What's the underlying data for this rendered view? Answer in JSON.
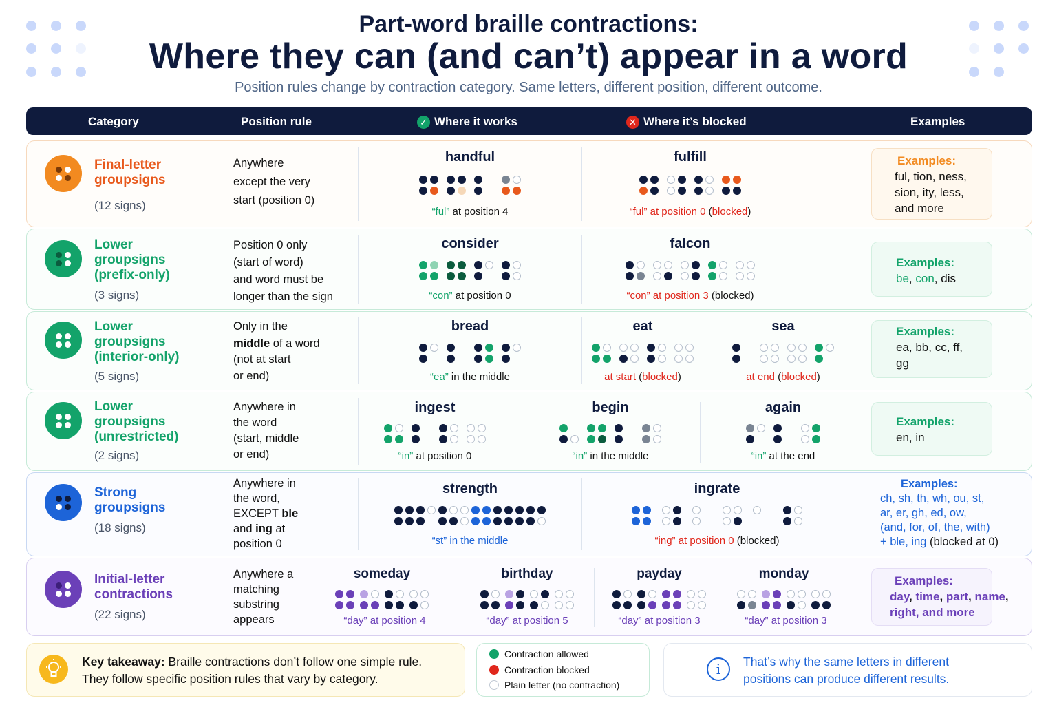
{
  "title": {
    "top": "Part-word braille contractions:",
    "main": "Where they can (and can’t) appear in a word",
    "subtitle": "Position rules change by contraction category. Same letters, different position, different outcome."
  },
  "header": {
    "category": "Category",
    "position_rule": "Position rule",
    "works": "Where it works",
    "blocked": "Where it’s blocked",
    "examples": "Examples",
    "works_icon": "check-circle-icon",
    "blocked_icon": "x-circle-icon"
  },
  "rows": [
    {
      "name": "Final-letter groupsigns",
      "count": "(12 signs)",
      "rule": [
        "Anywhere",
        "except the very",
        "start (position 0)"
      ],
      "color": "#e8591c",
      "works": [
        {
          "word": "handful",
          "caption_hl": "“ful”",
          "caption_rest": " at position 4"
        }
      ],
      "blocked": [
        {
          "word": "fulfill",
          "caption_hl": "“ful” at position 0",
          "caption_rest": " (",
          "caption_end": "blocked",
          "caption_close": ")"
        }
      ],
      "examples_head": "Examples:",
      "examples": "ful, tion, ness, sion, ity, less, and more"
    },
    {
      "name": "Lower groupsigns (prefix-only)",
      "count": "(3 signs)",
      "rule": [
        "Position 0 only",
        "(start of word)",
        "and word must be",
        "longer than the sign"
      ],
      "color": "#13a36a",
      "works": [
        {
          "word": "consider",
          "caption_hl": "“con”",
          "caption_rest": " at position 0"
        }
      ],
      "blocked": [
        {
          "word": "falcon",
          "caption_hl": "“con” at position 3",
          "caption_rest": " (blocked)"
        }
      ],
      "examples_head": "Examples:",
      "examples_parts": [
        "be",
        ", ",
        "con",
        ", dis"
      ]
    },
    {
      "name": "Lower groupsigns (interior-only)",
      "count": "(5 signs)",
      "rule_parts": [
        "Only in the",
        "middle",
        " of a word",
        "(not at start",
        "or end)"
      ],
      "color": "#13a36a",
      "works": [
        {
          "word": "bread",
          "caption_hl": "“ea”",
          "caption_rest": " in the middle"
        }
      ],
      "blocked": [
        {
          "word": "eat",
          "caption_hl": "at start",
          "caption_rest": " (",
          "caption_end": "blocked",
          "caption_close": ")"
        },
        {
          "word": "sea",
          "caption_hl": "at end",
          "caption_rest": " (",
          "caption_end": "blocked",
          "caption_close": ")"
        }
      ],
      "examples_head": "Examples:",
      "examples": "ea, bb, cc, ff, gg"
    },
    {
      "name": "Lower groupsigns (unrestricted)",
      "count": "(2 signs)",
      "rule": [
        "Anywhere in",
        "the word",
        "(start, middle",
        "or end)"
      ],
      "color": "#13a36a",
      "works": [
        {
          "word": "ingest",
          "caption_hl": "“in”",
          "caption_rest": " at position 0"
        },
        {
          "word": "begin",
          "caption_hl": "“in”",
          "caption_rest": " in the middle"
        },
        {
          "word": "again",
          "caption_hl": "“in”",
          "caption_rest": " at the end"
        }
      ],
      "examples_head": "Examples:",
      "examples": "en, in"
    },
    {
      "name": "Strong groupsigns",
      "count": "(18 signs)",
      "rule_parts": [
        "Anywhere in",
        "the word,",
        "EXCEPT ",
        "ble",
        "and ",
        "ing",
        " at",
        "position 0"
      ],
      "color": "#1d64d8",
      "works": [
        {
          "word": "strength",
          "caption_hl": "“st” in the middle",
          "caption_rest": ""
        }
      ],
      "blocked": [
        {
          "word": "ingrate",
          "caption_hl": "“ing” at position 0",
          "caption_rest": " (blocked)"
        }
      ],
      "examples_head": "Examples:",
      "examples_lines": [
        "ch, sh, th, wh, ou, st,",
        "ar, er, gh, ed, ow,",
        "(and, for, of, the, with)"
      ],
      "examples_last": [
        "+ ble, ing",
        " (blocked at 0)"
      ]
    },
    {
      "name": "Initial-letter contractions",
      "count": "(22 signs)",
      "rule": [
        "Anywhere a",
        "matching",
        "substring",
        "appears"
      ],
      "color": "#6b40b8",
      "works": [
        {
          "word": "someday",
          "caption_hl": "“day”",
          "caption_rest": " at position 4"
        },
        {
          "word": "birthday",
          "caption_hl": "“day”",
          "caption_rest": " at position 5"
        },
        {
          "word": "payday",
          "caption_hl": "“day”",
          "caption_rest": " at position 3"
        },
        {
          "word": "monday",
          "caption_hl": "“day”",
          "caption_rest": " at position 3"
        }
      ],
      "examples_head": "Examples:",
      "examples_parts": [
        "day",
        ", ",
        "time",
        ", ",
        "part",
        ", ",
        "name",
        ",",
        "right",
        ", and more"
      ]
    }
  ],
  "footer": {
    "takeaway_label": "Key takeaway:",
    "takeaway_line1": " Braille contractions don’t follow one simple rule.",
    "takeaway_line2": "They follow specific position rules that vary by category.",
    "takeaway_icon": "lightbulb-icon",
    "legend": [
      {
        "label": "Contraction allowed",
        "color": "#13a36a"
      },
      {
        "label": "Contraction blocked",
        "color": "#e0271c"
      },
      {
        "label": "Plain letter (no contraction)",
        "color": "#ffffff"
      }
    ],
    "note_line1": "That’s why the same letters in different",
    "note_line2": "positions can produce different results.",
    "note_icon": "info-icon"
  },
  "colors": {
    "navy": "#0f1b3d",
    "allowed": "#13a36a",
    "blocked": "#e0271c",
    "final": "#e8591c",
    "lower": "#13a36a",
    "strong": "#1d64d8",
    "initial": "#6b40b8"
  }
}
